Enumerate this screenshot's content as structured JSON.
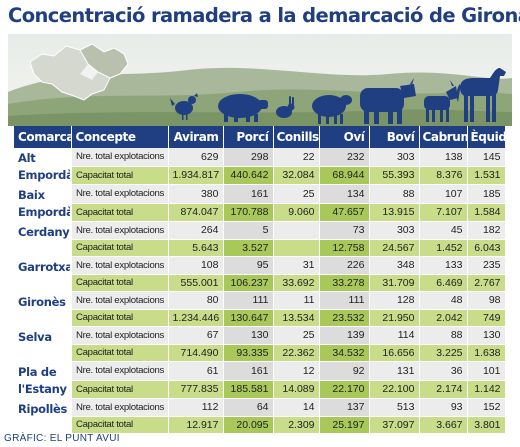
{
  "title": "Concentració ramadera a la demarcació de Girona",
  "colors": {
    "header": "#1f3f82",
    "row_count": "#ececec",
    "row_capacity": "#c8dc8a",
    "highlight": "#a9c85a"
  },
  "illustration": {
    "map": "catalonia-map-icon",
    "animals": [
      "chicken-icon",
      "pig-icon",
      "rabbit-icon",
      "sheep-icon",
      "cow-icon",
      "goat-icon",
      "horse-icon"
    ]
  },
  "headers": [
    "Comarca",
    "Concepte",
    "Aviram",
    "Porcí",
    "Conills",
    "Oví",
    "Boví",
    "Cabrum",
    "Èquids"
  ],
  "rows": [
    {
      "comarca": "Alt Empordà",
      "count": {
        "label": "Nre. total explotacions",
        "values": [
          "629",
          "298",
          "22",
          "232",
          "303",
          "138",
          "145"
        ]
      },
      "capacity": {
        "label": "Capacitat total",
        "values": [
          "1.934.817",
          "440.642",
          "32.084",
          "68.944",
          "55.393",
          "8.376",
          "1.531"
        ]
      }
    },
    {
      "comarca": "Baix Empordà",
      "count": {
        "label": "Nre. total explotacions",
        "values": [
          "380",
          "161",
          "25",
          "134",
          "88",
          "107",
          "185"
        ]
      },
      "capacity": {
        "label": "Capacitat total",
        "values": [
          "874.047",
          "170.788",
          "9.060",
          "47.657",
          "13.915",
          "7.107",
          "1.584"
        ]
      }
    },
    {
      "comarca": "Cerdanya",
      "count": {
        "label": "Nre. total explotacions",
        "values": [
          "264",
          "5",
          "",
          "73",
          "303",
          "45",
          "182"
        ]
      },
      "capacity": {
        "label": "Capacitat total",
        "values": [
          "5.643",
          "3.527",
          "",
          "12.758",
          "24.567",
          "1.452",
          "6.043"
        ]
      }
    },
    {
      "comarca": "Garrotxa",
      "count": {
        "label": "Nre. total explotacions",
        "values": [
          "108",
          "95",
          "31",
          "226",
          "348",
          "133",
          "235"
        ]
      },
      "capacity": {
        "label": "Capacitat total",
        "values": [
          "555.001",
          "106.237",
          "33.692",
          "33.278",
          "31.709",
          "6.469",
          "2.767"
        ]
      }
    },
    {
      "comarca": "Gironès",
      "count": {
        "label": "Nre. total explotacions",
        "values": [
          "80",
          "111",
          "11",
          "111",
          "128",
          "48",
          "98"
        ]
      },
      "capacity": {
        "label": "Capacitat total",
        "values": [
          "1.234.446",
          "130.647",
          "13.534",
          "23.532",
          "21.950",
          "2.042",
          "749"
        ]
      }
    },
    {
      "comarca": "Selva",
      "count": {
        "label": "Nre. total explotacions",
        "values": [
          "67",
          "130",
          "25",
          "139",
          "114",
          "88",
          "130"
        ]
      },
      "capacity": {
        "label": "Capacitat total",
        "values": [
          "714.490",
          "93.335",
          "22.362",
          "34.532",
          "16.656",
          "3.225",
          "1.638"
        ]
      }
    },
    {
      "comarca": "Pla de l'Estany",
      "count": {
        "label": "Nre. total explotacions",
        "values": [
          "61",
          "161",
          "12",
          "92",
          "131",
          "36",
          "101"
        ]
      },
      "capacity": {
        "label": "Capacitat total",
        "values": [
          "777.835",
          "185.581",
          "14.089",
          "22.170",
          "22.100",
          "2.174",
          "1.142"
        ]
      }
    },
    {
      "comarca": "Ripollès",
      "count": {
        "label": "Nre. total explotacions",
        "values": [
          "112",
          "64",
          "14",
          "137",
          "513",
          "93",
          "152"
        ]
      },
      "capacity": {
        "label": "Capacitat total",
        "values": [
          "12.917",
          "20.095",
          "2.309",
          "25.197",
          "37.097",
          "3.667",
          "3.801"
        ]
      }
    }
  ],
  "footer": "GRÀFIC: EL PUNT AVUI"
}
